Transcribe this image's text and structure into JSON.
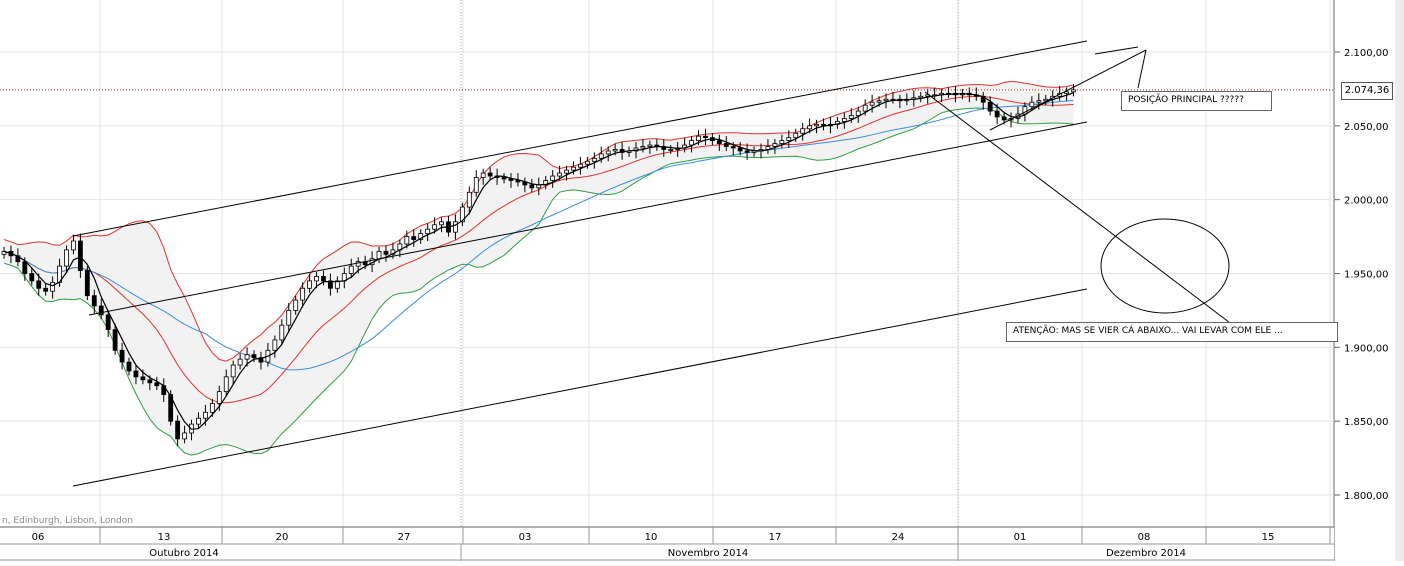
{
  "chart_data": {
    "type": "candlestick",
    "title": "",
    "xlabel": "",
    "ylabel": "",
    "ylim": [
      1775,
      2125
    ],
    "y_ticks": [
      "1.800,00",
      "1.850,00",
      "1.900,00",
      "1.950,00",
      "2.000,00",
      "2.050,00",
      "2.100,00"
    ],
    "y_tick_values": [
      1800,
      1850,
      1900,
      1950,
      2000,
      2050,
      2100
    ],
    "x_day_labels": [
      "06",
      "13",
      "20",
      "27",
      "03",
      "10",
      "17",
      "24",
      "01",
      "08",
      "15"
    ],
    "x_month_labels": [
      "Outubro 2014",
      "Novembro 2014",
      "Dezembro 2014"
    ],
    "timezone_label": "n, Edinburgh, Lisbon, London",
    "last_price_label": "2.074,36",
    "last_price": 2074.36,
    "grid": true,
    "closes": [
      1965,
      1962,
      1958,
      1950,
      1945,
      1940,
      1938,
      1944,
      1955,
      1966,
      1972,
      1952,
      1935,
      1928,
      1922,
      1912,
      1898,
      1890,
      1884,
      1880,
      1878,
      1876,
      1874,
      1868,
      1850,
      1838,
      1842,
      1848,
      1852,
      1856,
      1862,
      1870,
      1880,
      1888,
      1892,
      1895,
      1893,
      1890,
      1898,
      1905,
      1915,
      1925,
      1932,
      1940,
      1945,
      1948,
      1945,
      1940,
      1945,
      1950,
      1955,
      1958,
      1956,
      1960,
      1965,
      1963,
      1966,
      1970,
      1975,
      1973,
      1977,
      1980,
      1983,
      1985,
      1978,
      1985,
      1995,
      2005,
      2015,
      2018,
      2016,
      2015,
      2014,
      2013,
      2012,
      2010,
      2008,
      2010,
      2013,
      2016,
      2018,
      2020,
      2022,
      2024,
      2026,
      2028,
      2031,
      2033,
      2034,
      2032,
      2033,
      2035,
      2036,
      2037,
      2036,
      2034,
      2034,
      2035,
      2037,
      2040,
      2043,
      2042,
      2040,
      2038,
      2036,
      2035,
      2033,
      2032,
      2033,
      2034,
      2036,
      2038,
      2040,
      2042,
      2045,
      2048,
      2050,
      2051,
      2050,
      2051,
      2053,
      2055,
      2057,
      2060,
      2064,
      2066,
      2067,
      2068,
      2068,
      2067,
      2068,
      2069,
      2070,
      2071,
      2071,
      2072,
      2072,
      2071,
      2072,
      2071,
      2070,
      2066,
      2060,
      2056,
      2054,
      2055,
      2058,
      2063,
      2066,
      2067,
      2068,
      2070,
      2072,
      2073,
      2074.36
    ],
    "indicators": [
      {
        "name": "bollinger-upper",
        "color": "#e03131"
      },
      {
        "name": "bollinger-middle",
        "color": "#e03131"
      },
      {
        "name": "bollinger-lower",
        "color": "#2f9e44"
      },
      {
        "name": "moving-average-slow",
        "color": "#3b8fd6"
      },
      {
        "name": "moving-average-fast",
        "color": "#000000"
      }
    ],
    "annotations": [
      {
        "text": "POSIÇÃO PRINCIPAL ?????"
      },
      {
        "text": "ATENÇÃO: MAS SE VIER CÁ ABAIXO... VAI LEVAR COM ELE ..."
      }
    ]
  },
  "colors": {
    "background": "#ffffff",
    "grid": "#dddddd",
    "candle_up": "#ffffff",
    "candle_down": "#000000",
    "band_fill": "#f2f2f2",
    "price_line": "#b22222"
  }
}
